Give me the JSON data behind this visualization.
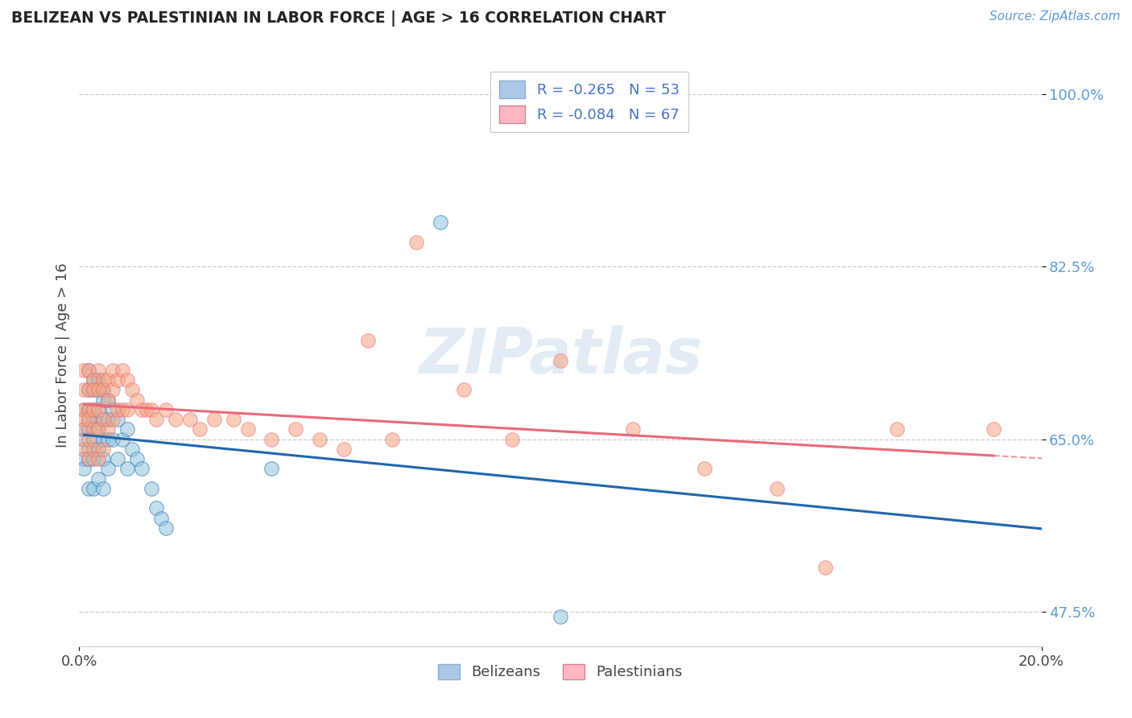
{
  "title": "BELIZEAN VS PALESTINIAN IN LABOR FORCE | AGE > 16 CORRELATION CHART",
  "source_text": "Source: ZipAtlas.com",
  "ylabel": "In Labor Force | Age > 16",
  "xlim": [
    0.0,
    0.2
  ],
  "ylim": [
    0.44,
    1.03
  ],
  "xticks": [
    0.0,
    0.2
  ],
  "xticklabels": [
    "0.0%",
    "20.0%"
  ],
  "yticks": [
    0.475,
    0.65,
    0.825,
    1.0
  ],
  "yticklabels": [
    "47.5%",
    "65.0%",
    "82.5%",
    "100.0%"
  ],
  "belizean_color": "#92c5de",
  "palestinian_color": "#f4a582",
  "belizean_line_color": "#2166ac",
  "palestinian_line_color": "#e8697a",
  "watermark": "ZIPatlas",
  "background_color": "#ffffff",
  "grid_color": "#cccccc",
  "belizean_x": [
    0.001,
    0.001,
    0.001,
    0.001,
    0.001,
    0.002,
    0.002,
    0.002,
    0.002,
    0.002,
    0.002,
    0.002,
    0.002,
    0.003,
    0.003,
    0.003,
    0.003,
    0.003,
    0.003,
    0.003,
    0.004,
    0.004,
    0.004,
    0.004,
    0.004,
    0.004,
    0.005,
    0.005,
    0.005,
    0.005,
    0.005,
    0.005,
    0.006,
    0.006,
    0.006,
    0.006,
    0.007,
    0.007,
    0.008,
    0.008,
    0.009,
    0.01,
    0.01,
    0.011,
    0.012,
    0.013,
    0.015,
    0.016,
    0.017,
    0.018,
    0.04,
    0.075,
    0.1
  ],
  "belizean_y": [
    0.68,
    0.66,
    0.65,
    0.63,
    0.62,
    0.72,
    0.7,
    0.68,
    0.67,
    0.66,
    0.64,
    0.63,
    0.6,
    0.71,
    0.7,
    0.68,
    0.67,
    0.65,
    0.63,
    0.6,
    0.71,
    0.7,
    0.68,
    0.66,
    0.64,
    0.61,
    0.7,
    0.69,
    0.67,
    0.65,
    0.63,
    0.6,
    0.69,
    0.67,
    0.65,
    0.62,
    0.68,
    0.65,
    0.67,
    0.63,
    0.65,
    0.66,
    0.62,
    0.64,
    0.63,
    0.62,
    0.6,
    0.58,
    0.57,
    0.56,
    0.62,
    0.87,
    0.47
  ],
  "palestinian_x": [
    0.001,
    0.001,
    0.001,
    0.001,
    0.001,
    0.001,
    0.002,
    0.002,
    0.002,
    0.002,
    0.002,
    0.002,
    0.003,
    0.003,
    0.003,
    0.003,
    0.003,
    0.004,
    0.004,
    0.004,
    0.004,
    0.004,
    0.005,
    0.005,
    0.005,
    0.005,
    0.006,
    0.006,
    0.006,
    0.007,
    0.007,
    0.007,
    0.008,
    0.008,
    0.009,
    0.009,
    0.01,
    0.01,
    0.011,
    0.012,
    0.013,
    0.014,
    0.015,
    0.016,
    0.018,
    0.02,
    0.023,
    0.025,
    0.028,
    0.032,
    0.035,
    0.04,
    0.045,
    0.05,
    0.055,
    0.06,
    0.065,
    0.07,
    0.08,
    0.09,
    0.1,
    0.115,
    0.13,
    0.145,
    0.155,
    0.17,
    0.19
  ],
  "palestinian_y": [
    0.72,
    0.7,
    0.68,
    0.67,
    0.66,
    0.64,
    0.72,
    0.7,
    0.68,
    0.67,
    0.65,
    0.63,
    0.71,
    0.7,
    0.68,
    0.66,
    0.64,
    0.72,
    0.7,
    0.68,
    0.66,
    0.63,
    0.71,
    0.7,
    0.67,
    0.64,
    0.71,
    0.69,
    0.66,
    0.72,
    0.7,
    0.67,
    0.71,
    0.68,
    0.72,
    0.68,
    0.71,
    0.68,
    0.7,
    0.69,
    0.68,
    0.68,
    0.68,
    0.67,
    0.68,
    0.67,
    0.67,
    0.66,
    0.67,
    0.67,
    0.66,
    0.65,
    0.66,
    0.65,
    0.64,
    0.75,
    0.65,
    0.85,
    0.7,
    0.65,
    0.73,
    0.66,
    0.62,
    0.6,
    0.52,
    0.66,
    0.66
  ],
  "legend_blue_label": "R = -0.265   N = 53",
  "legend_pink_label": "R = -0.084   N = 67",
  "bottom_legend_belizeans": "Belizeans",
  "bottom_legend_palestinians": "Palestinians"
}
